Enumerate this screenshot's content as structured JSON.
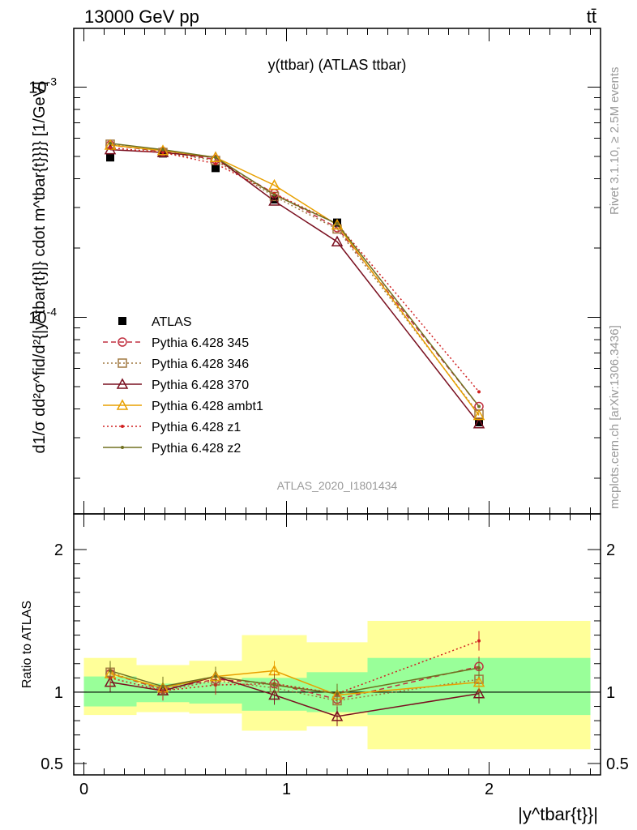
{
  "header": {
    "energy_label": "13000 GeV pp",
    "process_label": "tt̄"
  },
  "side": {
    "rivet_label": "Rivet 3.1.10, ≥ 2.5M events",
    "mcplots_label": "mcplots.cern.ch [arXiv:1306.3436]"
  },
  "chart_data": [
    {
      "type": "line",
      "title": "y(ttbar) (ATLAS ttbar)",
      "watermark": "ATLAS_2020_I1801434",
      "ylabel": "d1/σ dd²σ^fid/d²{|y^tbar{t}|} cdot m^tbar{t}}}} [1/GeV]",
      "yscale": "log",
      "ylim": [
        1.4e-05,
        0.0018
      ],
      "xlim": [
        -0.05,
        2.55
      ],
      "ytick_labels": [
        "10^-4",
        "10^-3"
      ],
      "x_bins": [
        [
          0.0,
          0.26
        ],
        [
          0.26,
          0.52
        ],
        [
          0.52,
          0.78
        ],
        [
          0.78,
          1.1
        ],
        [
          1.1,
          1.4
        ],
        [
          1.4,
          2.5
        ]
      ],
      "x": [
        0.13,
        0.39,
        0.65,
        0.94,
        1.25,
        1.95
      ],
      "series": [
        {
          "name": "ATLAS",
          "color": "#000000",
          "marker": "square-filled",
          "values": [
            0.000495,
            0.000515,
            0.000445,
            0.000325,
            0.000258,
            3.5e-05
          ]
        },
        {
          "name": "Pythia 6.428 345",
          "color": "#c03040",
          "marker": "circle-open",
          "dash": "dashed",
          "values": [
            0.00056,
            0.000525,
            0.000485,
            0.000345,
            0.000245,
            4.1e-05
          ]
        },
        {
          "name": "Pythia 6.428 346",
          "color": "#a07840",
          "marker": "square-open",
          "dash": "dotted",
          "values": [
            0.000565,
            0.00052,
            0.00048,
            0.000335,
            0.000242,
            3.8e-05
          ]
        },
        {
          "name": "Pythia 6.428 370",
          "color": "#7a1020",
          "marker": "triangle-open",
          "dash": "solid",
          "values": [
            0.000535,
            0.00052,
            0.000495,
            0.00032,
            0.000213,
            3.45e-05
          ]
        },
        {
          "name": "Pythia 6.428 ambt1",
          "color": "#e8a000",
          "marker": "triangle-open",
          "dash": "solid",
          "values": [
            0.00056,
            0.00053,
            0.000495,
            0.000375,
            0.000252,
            3.75e-05
          ]
        },
        {
          "name": "Pythia 6.428 z1",
          "color": "#d02020",
          "marker": "dot",
          "dash": "dotted",
          "values": [
            0.000545,
            0.00052,
            0.000465,
            0.000345,
            0.000255,
            4.75e-05
          ]
        },
        {
          "name": "Pythia 6.428 z2",
          "color": "#707020",
          "marker": "dot",
          "dash": "solid",
          "values": [
            0.00057,
            0.000535,
            0.000495,
            0.00034,
            0.000255,
            4.1e-05
          ]
        }
      ]
    },
    {
      "type": "line",
      "ylabel": "Ratio to ATLAS",
      "xlabel": "|y^tbar{t}}|",
      "ylim": [
        0.42,
        2.25
      ],
      "xlim": [
        -0.05,
        2.55
      ],
      "x_tick_labels": [
        "0",
        "1",
        "2"
      ],
      "y_tick_labels": [
        "0.5",
        "1",
        "2"
      ],
      "band_inner": [
        [
          0.9,
          1.11
        ],
        [
          0.93,
          1.06
        ],
        [
          0.92,
          1.07
        ],
        [
          0.87,
          1.1
        ],
        [
          0.86,
          1.14
        ],
        [
          0.84,
          1.24
        ]
      ],
      "band_outer": [
        [
          0.84,
          1.24
        ],
        [
          0.86,
          1.19
        ],
        [
          0.85,
          1.22
        ],
        [
          0.73,
          1.4
        ],
        [
          0.76,
          1.35
        ],
        [
          0.6,
          1.5
        ]
      ],
      "x": [
        0.13,
        0.39,
        0.65,
        0.94,
        1.25,
        1.95
      ],
      "series": [
        {
          "name": "ATLAS",
          "values": [
            1.0,
            1.0,
            1.0,
            1.0,
            1.0,
            1.0
          ]
        },
        {
          "name": "Pythia 6.428 345",
          "values": [
            1.13,
            1.02,
            1.09,
            1.06,
            0.95,
            1.18
          ]
        },
        {
          "name": "Pythia 6.428 346",
          "values": [
            1.14,
            1.01,
            1.08,
            1.03,
            0.94,
            1.09
          ]
        },
        {
          "name": "Pythia 6.428 370",
          "values": [
            1.07,
            1.01,
            1.11,
            0.98,
            0.83,
            0.99
          ]
        },
        {
          "name": "Pythia 6.428 ambt1",
          "values": [
            1.13,
            1.03,
            1.11,
            1.15,
            0.98,
            1.07
          ]
        },
        {
          "name": "Pythia 6.428 z1",
          "values": [
            1.1,
            1.01,
            1.05,
            1.06,
            0.99,
            1.36
          ]
        },
        {
          "name": "Pythia 6.428 z2",
          "values": [
            1.15,
            1.04,
            1.11,
            1.05,
            0.99,
            1.17
          ]
        }
      ]
    }
  ]
}
